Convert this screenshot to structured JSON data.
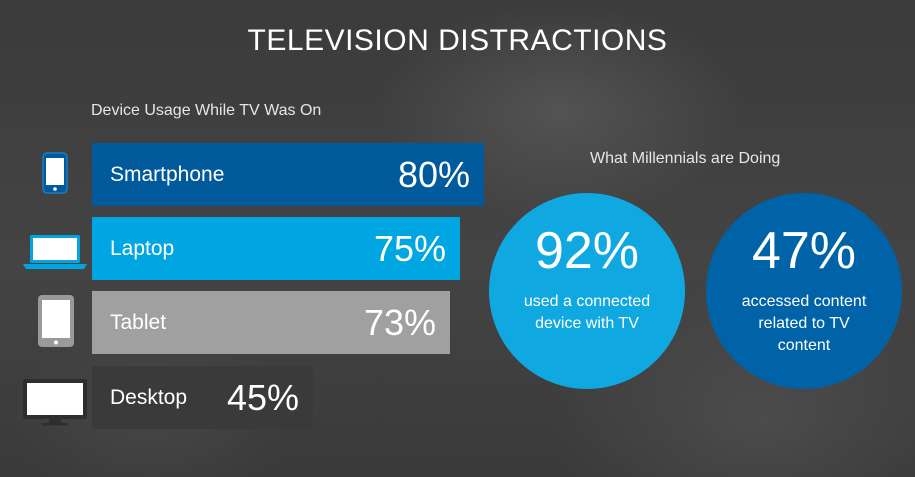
{
  "title": "TELEVISION DISTRACTIONS",
  "subtitle": "Device Usage While  TV Was On",
  "circles_title": "What Millennials are Doing",
  "chart_data": [
    {
      "type": "bar",
      "orientation": "horizontal",
      "title": "Device Usage While  TV Was On",
      "categories": [
        "Smartphone",
        "Laptop",
        "Tablet",
        "Desktop"
      ],
      "values": [
        80,
        75,
        73,
        45
      ],
      "value_labels": [
        "80%",
        "75%",
        "73%",
        "45%"
      ],
      "unit": "%",
      "colors": [
        "#005a9c",
        "#00a6e2",
        "#a0a0a0",
        "#3a3a3a"
      ],
      "icons": [
        "smartphone-icon",
        "laptop-icon",
        "tablet-icon",
        "desktop-icon"
      ]
    },
    {
      "type": "table",
      "title": "What Millennials are Doing",
      "stats": [
        {
          "value": "92%",
          "description": "used a connected device with TV",
          "lines": [
            "used a connected",
            "device with TV"
          ],
          "color": "#10a8e0"
        },
        {
          "value": "47%",
          "description": "accessed content related to TV content",
          "lines": [
            "accessed content",
            "related to TV",
            "content"
          ],
          "color": "#0063a8"
        }
      ]
    }
  ]
}
